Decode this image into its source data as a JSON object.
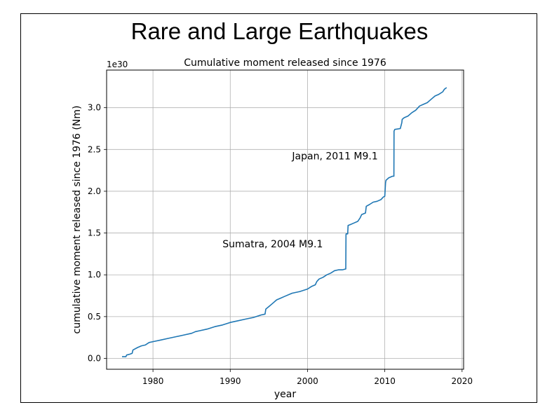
{
  "slide": {
    "title": "Rare and Large Earthquakes"
  },
  "chart_data": {
    "type": "line",
    "title": "Cumulative moment released since 1976",
    "xlabel": "year",
    "ylabel": "cumulative moment released since 1976 (Nm)",
    "y_offset_label": "1e30",
    "xlim": [
      1974,
      2020.2
    ],
    "ylim": [
      -0.13,
      3.45
    ],
    "x_ticks": [
      1980,
      1990,
      2000,
      2010,
      2020
    ],
    "x_tick_labels": [
      "1980",
      "1990",
      "2000",
      "2010",
      "2020"
    ],
    "y_ticks": [
      0,
      0.5,
      1,
      1.5,
      2,
      2.5,
      3
    ],
    "y_tick_labels": [
      "0.0",
      "0.5",
      "1.0",
      "1.5",
      "2.0",
      "2.5",
      "3.0"
    ],
    "grid": true,
    "line_color": "#1f77b4",
    "series": [
      {
        "x": [
          1976.0,
          1976.5,
          1976.6,
          1977.0,
          1977.3,
          1977.4,
          1978.0,
          1978.5,
          1979.0,
          1979.5,
          1980.0,
          1981.0,
          1982.0,
          1983.0,
          1984.0,
          1985.0,
          1985.5,
          1986.0,
          1987.0,
          1988.0,
          1989.0,
          1990.0,
          1991.0,
          1992.0,
          1993.0,
          1994.0,
          1994.5,
          1994.6,
          1995.0,
          1995.5,
          1996.0,
          1996.5,
          1997.0,
          1998.0,
          1999.0,
          2000.0,
          2000.5,
          2001.0,
          2001.2,
          2001.5,
          2002.0,
          2002.5,
          2003.0,
          2003.5,
          2004.0,
          2004.5,
          2004.95,
          2004.98,
          2005.0,
          2005.2,
          2005.25,
          2005.5,
          2006.0,
          2006.5,
          2006.8,
          2007.0,
          2007.5,
          2007.6,
          2008.0,
          2008.5,
          2009.0,
          2009.5,
          2009.8,
          2010.0,
          2010.1,
          2010.15,
          2010.5,
          2011.0,
          2011.18,
          2011.2,
          2011.3,
          2012.0,
          2012.2,
          2012.25,
          2012.5,
          2013.0,
          2013.5,
          2014.0,
          2014.5,
          2015.0,
          2015.5,
          2016.0,
          2016.5,
          2017.0,
          2017.5,
          2017.7,
          2018.0
        ],
        "y": [
          0.02,
          0.02,
          0.04,
          0.05,
          0.06,
          0.1,
          0.13,
          0.15,
          0.16,
          0.19,
          0.2,
          0.22,
          0.24,
          0.26,
          0.28,
          0.3,
          0.32,
          0.33,
          0.35,
          0.38,
          0.4,
          0.43,
          0.45,
          0.47,
          0.49,
          0.52,
          0.53,
          0.59,
          0.62,
          0.66,
          0.7,
          0.72,
          0.74,
          0.78,
          0.8,
          0.83,
          0.86,
          0.88,
          0.92,
          0.95,
          0.97,
          1.0,
          1.02,
          1.05,
          1.06,
          1.06,
          1.07,
          1.48,
          1.49,
          1.49,
          1.59,
          1.6,
          1.62,
          1.64,
          1.68,
          1.72,
          1.74,
          1.82,
          1.84,
          1.87,
          1.88,
          1.9,
          1.93,
          1.94,
          2.1,
          2.13,
          2.16,
          2.18,
          2.18,
          2.72,
          2.74,
          2.75,
          2.82,
          2.86,
          2.88,
          2.9,
          2.94,
          2.97,
          3.02,
          3.04,
          3.06,
          3.1,
          3.14,
          3.16,
          3.19,
          3.22,
          3.24
        ]
      }
    ],
    "annotations": [
      {
        "text": "Sumatra, 2004 M9.1",
        "x": 1989.0,
        "y": 1.33
      },
      {
        "text": "Japan, 2011 M9.1",
        "x": 1998.0,
        "y": 2.38
      }
    ]
  }
}
